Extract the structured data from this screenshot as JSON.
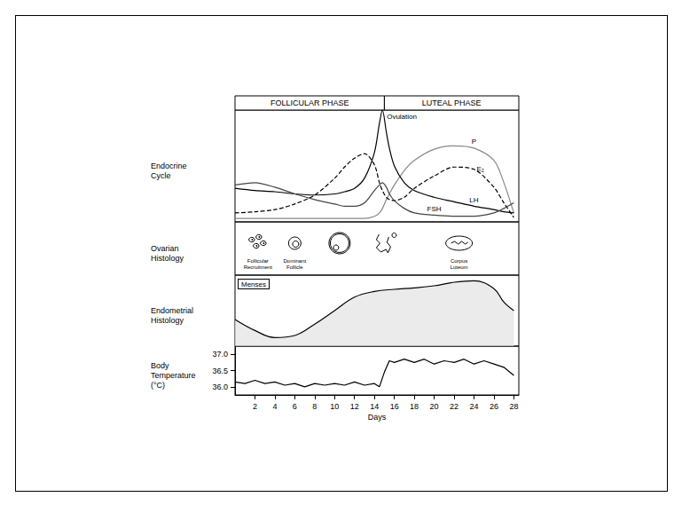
{
  "header": {
    "phases": [
      "FOLLICULAR PHASE",
      "LUTEAL PHASE"
    ],
    "boundary": 15,
    "xlim": [
      0,
      28.5
    ]
  },
  "chart_data": [
    {
      "type": "line",
      "title": "Endocrine Cycle",
      "x": [
        0,
        2,
        4,
        6,
        8,
        10,
        11,
        12,
        13,
        14,
        14.5,
        14.8,
        15.2,
        15.5,
        16,
        17,
        18,
        20,
        22,
        24,
        26,
        27,
        28
      ],
      "series": [
        {
          "name": "P",
          "color": "#888888",
          "line_style": "solid",
          "values": [
            3,
            3,
            3,
            3,
            3,
            3,
            3,
            3,
            3,
            5,
            8,
            12,
            20,
            25,
            33,
            46,
            55,
            65,
            68,
            66,
            55,
            35,
            8
          ]
        },
        {
          "name": "E₂",
          "color": "#000000",
          "line_style": "dashed",
          "values": [
            8,
            9,
            11,
            16,
            24,
            39,
            49,
            57,
            61,
            51,
            35,
            28,
            22,
            20,
            19,
            22,
            30,
            41,
            49,
            47,
            31,
            17,
            4
          ]
        },
        {
          "name": "LH",
          "color": "#000000",
          "line_style": "solid",
          "values": [
            30,
            28,
            27,
            25,
            24,
            25,
            27,
            30,
            39,
            62,
            88,
            100,
            80,
            66,
            50,
            35,
            28,
            22,
            18,
            14,
            11,
            9,
            8
          ]
        },
        {
          "name": "FSH",
          "color": "#444444",
          "line_style": "solid",
          "values": [
            33,
            35,
            31,
            25,
            20,
            16,
            14,
            14,
            17,
            28,
            33,
            35,
            31,
            25,
            19,
            12,
            8,
            6,
            5,
            5,
            8,
            12,
            17
          ]
        }
      ],
      "xlim": [
        0,
        28.5
      ],
      "ylim": [
        0,
        100
      ],
      "tick_labels": false,
      "annotations": [
        {
          "text": "Ovulation",
          "x": 14.8
        }
      ]
    },
    {
      "type": "diagram",
      "title": "Ovarian Histology",
      "xlim": [
        0,
        28.5
      ],
      "items": [
        {
          "label": "Follicular Recruitment",
          "x": 2.3
        },
        {
          "label": "Dominant Follicle",
          "x": 6
        },
        {
          "x": 10.5
        },
        {
          "x": 15
        },
        {
          "label": "Corpus Luteum",
          "x": 22.5
        }
      ]
    },
    {
      "type": "area",
      "title": "Endometrial Histology",
      "x": [
        0,
        2,
        4,
        6,
        8,
        10,
        12,
        14,
        16,
        18,
        20,
        22,
        24,
        26,
        27,
        28
      ],
      "values": [
        37.5,
        22,
        12,
        15,
        31,
        50,
        69,
        77,
        80,
        82,
        85,
        90,
        92,
        81,
        62,
        50
      ],
      "color": "#000000",
      "xlim": [
        0,
        28.5
      ],
      "ylim": [
        0,
        100
      ],
      "tick_labels": false,
      "annotations": [
        {
          "text": "Menses"
        }
      ]
    },
    {
      "type": "line",
      "title": "Body Temperature (°C)",
      "x": [
        0,
        1,
        2,
        3,
        4,
        5,
        6,
        7,
        8,
        9,
        10,
        11,
        12,
        13,
        14,
        14.5,
        15,
        15.5,
        16,
        17,
        18,
        19,
        20,
        21,
        22,
        23,
        24,
        25,
        26,
        27,
        28
      ],
      "values": [
        36.15,
        36.1,
        36.2,
        36.1,
        36.15,
        36.05,
        36.1,
        36.0,
        36.1,
        36.05,
        36.1,
        36.05,
        36.15,
        36.05,
        36.1,
        36.0,
        36.45,
        36.8,
        36.75,
        36.85,
        36.75,
        36.85,
        36.7,
        36.8,
        36.75,
        36.85,
        36.7,
        36.8,
        36.7,
        36.6,
        36.35
      ],
      "color": "#000000",
      "xlim": [
        0,
        28.5
      ],
      "ylim": [
        35.75,
        37.25
      ],
      "xticks": [
        2,
        4,
        6,
        8,
        10,
        12,
        14,
        16,
        18,
        20,
        22,
        24,
        26,
        28
      ],
      "yticks": [
        {
          "value": 36,
          "label": "36.0"
        },
        {
          "value": 36.5,
          "label": "36.5"
        },
        {
          "value": 37,
          "label": "37.0"
        }
      ],
      "xlabel": "Days"
    }
  ]
}
